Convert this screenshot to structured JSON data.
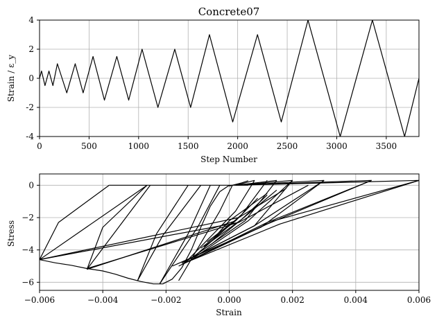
{
  "chart_data": [
    {
      "type": "line",
      "title": "Concrete07",
      "xlabel": "Step Number",
      "ylabel": "Strain / ε_y",
      "xlim": [
        0,
        3830
      ],
      "ylim": [
        -4,
        4
      ],
      "xticks": [
        0,
        500,
        1000,
        1500,
        2000,
        2500,
        3000,
        3500
      ],
      "yticks": [
        -4,
        -2,
        0,
        2,
        4
      ],
      "grid": true,
      "series": [
        {
          "x": [
            0,
            20,
            55,
            95,
            135,
            180,
            275,
            360,
            440,
            540,
            655,
            780,
            900,
            1035,
            1195,
            1365,
            1525,
            1715,
            1950,
            2200,
            2440,
            2710,
            3035,
            3360,
            3685,
            3830
          ],
          "y": [
            0,
            0.5,
            -0.5,
            0.5,
            -0.5,
            1,
            -1,
            1,
            -1,
            1.5,
            -1.5,
            1.5,
            -1.5,
            2,
            -2,
            2,
            -2,
            3,
            -3,
            3,
            -3,
            4,
            -4,
            4,
            -4,
            0
          ]
        }
      ]
    },
    {
      "type": "line",
      "title": "",
      "xlabel": "Strain",
      "ylabel": "Stress",
      "xlim": [
        -0.006,
        0.006
      ],
      "ylim": [
        -6.5,
        0.7
      ],
      "xticks": [
        -0.006,
        -0.004,
        -0.002,
        0.0,
        0.002,
        0.004,
        0.006
      ],
      "xtick_labels": [
        "−0.006",
        "−0.004",
        "−0.002",
        "0.000",
        "0.002",
        "0.004",
        "0.006"
      ],
      "yticks": [
        -6,
        -4,
        -2,
        0
      ],
      "ytick_labels": [
        "−6",
        "−4",
        "−2",
        "0"
      ],
      "grid": true,
      "series": [
        {
          "x": [
            0,
            -0.0003,
            -0.0006,
            -0.0009,
            -0.0012,
            -0.0015,
            -0.0018,
            -0.0021,
            -0.0024,
            -0.0028,
            -0.0032,
            -0.0036,
            -0.004,
            -0.0045,
            -0.005,
            -0.0055,
            -0.006
          ],
          "y": [
            0,
            -0.4,
            -1.3,
            -2.6,
            -4.0,
            -5.1,
            -5.8,
            -6.1,
            -6.1,
            -5.95,
            -5.75,
            -5.5,
            -5.3,
            -5.15,
            -4.95,
            -4.8,
            -4.6
          ]
        },
        {
          "x": [
            0.0,
            0.0004,
            0.0006
          ],
          "y": [
            -0.05,
            0.15,
            0.28
          ]
        },
        {
          "x": [
            -0.006,
            -0.0054,
            -0.0038
          ],
          "y": [
            -4.6,
            -2.3,
            0.0
          ]
        },
        {
          "x": [
            -0.0038,
            0.0006
          ],
          "y": [
            0.0,
            0.0
          ]
        },
        {
          "x": [
            -0.006,
            -0.0026
          ],
          "y": [
            -4.6,
            0.0
          ]
        },
        {
          "x": [
            -0.0045,
            -0.004,
            -0.0026
          ],
          "y": [
            -5.2,
            -2.6,
            0.0
          ]
        },
        {
          "x": [
            -0.0045,
            -0.0025
          ],
          "y": [
            -5.2,
            0.0
          ]
        },
        {
          "x": [
            -0.0045,
            0.0002
          ],
          "y": [
            -5.2,
            -2.2
          ]
        },
        {
          "x": [
            -0.0045,
            0.0002
          ],
          "y": [
            -5.15,
            -2.35
          ]
        },
        {
          "x": [
            -0.0029,
            -0.0023,
            -0.0013
          ],
          "y": [
            -5.9,
            -3.0,
            0.0
          ]
        },
        {
          "x": [
            -0.0029,
            -0.0021,
            -0.0009
          ],
          "y": [
            -5.9,
            -3.1,
            0.0
          ]
        },
        {
          "x": [
            -0.0022,
            -0.0013,
            -0.0006
          ],
          "y": [
            -6.1,
            -3.0,
            0.0
          ]
        },
        {
          "x": [
            -0.0022,
            -0.001,
            -0.0003
          ],
          "y": [
            -6.1,
            -2.6,
            0.0
          ]
        },
        {
          "x": [
            -0.0016,
            -0.0003,
            0.0001
          ],
          "y": [
            -5.9,
            -1.6,
            0.0
          ]
        },
        {
          "x": [
            -0.006,
            0.0003
          ],
          "y": [
            -4.6,
            -2.0
          ]
        },
        {
          "x": [
            0.0002,
            0.0008
          ],
          "y": [
            0.0,
            0.3
          ]
        },
        {
          "x": [
            0.0002,
            0.0015
          ],
          "y": [
            0.0,
            0.3
          ]
        },
        {
          "x": [
            0.0002,
            0.002
          ],
          "y": [
            0.0,
            0.3
          ]
        },
        {
          "x": [
            0.0002,
            0.003
          ],
          "y": [
            0.0,
            0.3
          ]
        },
        {
          "x": [
            0.0002,
            0.0045
          ],
          "y": [
            0.0,
            0.3
          ]
        },
        {
          "x": [
            0.0002,
            0.006
          ],
          "y": [
            0.0,
            0.3
          ]
        },
        {
          "x": [
            -0.0013,
            0.0002,
            0.0008
          ],
          "y": [
            -4.6,
            -1.6,
            0.3
          ]
        },
        {
          "x": [
            -0.0011,
            0.0004,
            0.0012
          ],
          "y": [
            -4.4,
            -1.8,
            0.3
          ]
        },
        {
          "x": [
            -0.0015,
            0.0005,
            0.0015
          ],
          "y": [
            -4.9,
            -2.2,
            0.3
          ]
        },
        {
          "x": [
            -0.0012,
            0.0006,
            0.002
          ],
          "y": [
            -4.6,
            -2.2,
            0.3
          ]
        },
        {
          "x": [
            -0.0015,
            0.0008,
            0.002
          ],
          "y": [
            -4.8,
            -2.5,
            0.3
          ]
        },
        {
          "x": [
            -0.0012,
            0.0008,
            0.003
          ],
          "y": [
            -4.5,
            -2.5,
            0.3
          ]
        },
        {
          "x": [
            -0.0018,
            0.001,
            0.003
          ],
          "y": [
            -5.0,
            -2.6,
            0.3
          ]
        },
        {
          "x": [
            -0.0014,
            0.0012,
            0.0045
          ],
          "y": [
            -4.8,
            -2.3,
            0.3
          ]
        },
        {
          "x": [
            -0.0016,
            0.0012,
            0.0045
          ],
          "y": [
            -5.0,
            -2.4,
            0.3
          ]
        },
        {
          "x": [
            -0.0015,
            0.0014,
            0.006
          ],
          "y": [
            -4.9,
            -2.2,
            0.3
          ]
        },
        {
          "x": [
            -0.0014,
            0.0016,
            0.006
          ],
          "y": [
            -4.8,
            -2.4,
            0.3
          ]
        },
        {
          "x": [
            -0.0005,
            0.0,
            0.0012
          ],
          "y": [
            -3.3,
            -2.2,
            -0.5
          ]
        },
        {
          "x": [
            -0.0006,
            0.0004,
            0.0015
          ],
          "y": [
            -3.7,
            -2.1,
            -0.3
          ]
        },
        {
          "x": [
            -0.0008,
            0.0004,
            0.0012
          ],
          "y": [
            -3.8,
            -2.1,
            -0.6
          ]
        },
        {
          "x": [
            -0.0007,
            0.0003,
            0.0018
          ],
          "y": [
            -3.5,
            -2.0,
            -0.2
          ]
        },
        {
          "x": [
            -0.0009,
            0.0002,
            0.0009
          ],
          "y": [
            -3.9,
            -2.2,
            -0.8
          ]
        },
        {
          "x": [
            -0.006,
            0.0003,
            0.0025
          ],
          "y": [
            -4.6,
            -2.3,
            0.0
          ]
        }
      ]
    }
  ]
}
